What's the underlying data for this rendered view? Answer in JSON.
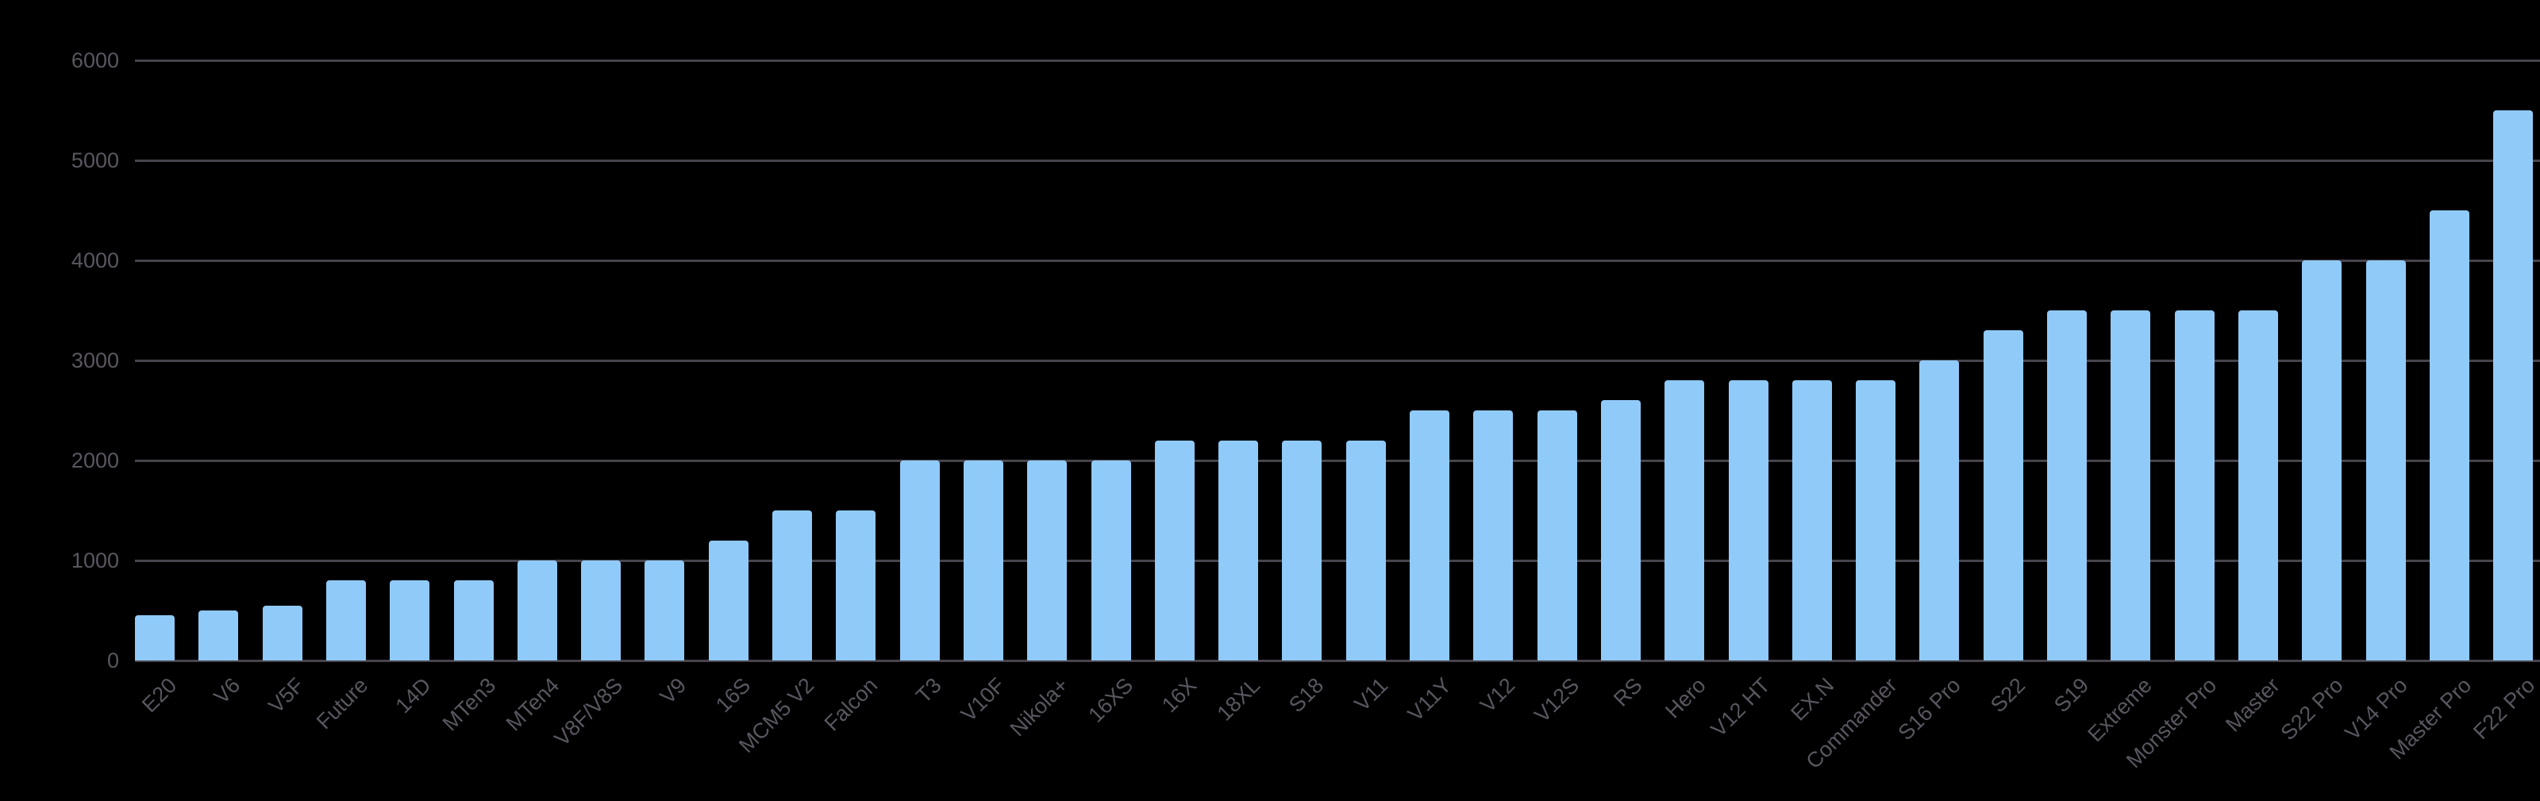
{
  "chart_data": {
    "type": "bar",
    "title": "",
    "xlabel": "",
    "ylabel": "",
    "ylim": [
      0,
      6000
    ],
    "yticks": [
      0,
      1000,
      2000,
      3000,
      4000,
      5000,
      6000
    ],
    "grid": true,
    "legend": null,
    "bar_color": "#90caf9",
    "grid_color": "#48444c",
    "label_color": "#5a5660",
    "background": "#000000",
    "categories": [
      "E20",
      "V6",
      "V5F",
      "Future",
      "14D",
      "MTen3",
      "MTen4",
      "V8F/V8S",
      "V9",
      "16S",
      "MCM5 V2",
      "Falcon",
      "T3",
      "V10F",
      "Nikola+",
      "16XS",
      "16X",
      "18XL",
      "S18",
      "V11",
      "V11Y",
      "V12",
      "V12S",
      "RS",
      "Hero",
      "V12 HT",
      "EX.N",
      "Commander",
      "S16 Pro",
      "S22",
      "S19",
      "Extreme",
      "Monster Pro",
      "Master",
      "S22 Pro",
      "V14 Pro",
      "Master Pro",
      "F22 Pro"
    ],
    "values": [
      450,
      500,
      550,
      800,
      800,
      800,
      1000,
      1000,
      1000,
      1200,
      1500,
      1500,
      2000,
      2000,
      2000,
      2000,
      2200,
      2200,
      2200,
      2200,
      2500,
      2500,
      2500,
      2600,
      2800,
      2800,
      2800,
      2800,
      3000,
      3300,
      3500,
      3500,
      3500,
      3500,
      4000,
      4000,
      4500,
      5500
    ]
  }
}
